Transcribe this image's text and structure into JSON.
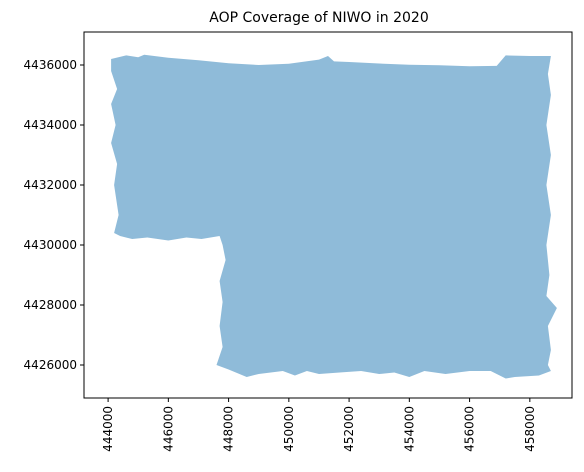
{
  "title": "AOP Coverage of NIWO in 2020",
  "xlim": [
    443200,
    459400
  ],
  "ylim": [
    4424900,
    4437100
  ],
  "x_ticks": [
    {
      "value": 444000,
      "label": "444000"
    },
    {
      "value": 446000,
      "label": "446000"
    },
    {
      "value": 448000,
      "label": "448000"
    },
    {
      "value": 450000,
      "label": "450000"
    },
    {
      "value": 452000,
      "label": "452000"
    },
    {
      "value": 454000,
      "label": "454000"
    },
    {
      "value": 456000,
      "label": "456000"
    },
    {
      "value": 458000,
      "label": "458000"
    }
  ],
  "y_ticks": [
    {
      "value": 4426000,
      "label": "4426000"
    },
    {
      "value": 4428000,
      "label": "4428000"
    },
    {
      "value": 4430000,
      "label": "4430000"
    },
    {
      "value": 4432000,
      "label": "4432000"
    },
    {
      "value": 4434000,
      "label": "4434000"
    },
    {
      "value": 4436000,
      "label": "4436000"
    }
  ],
  "coverage_color": "#1f77b4",
  "coverage_opacity": 0.5,
  "coverage_polygon": [
    [
      444100,
      4436200
    ],
    [
      444600,
      4436320
    ],
    [
      445000,
      4436260
    ],
    [
      445200,
      4436340
    ],
    [
      446000,
      4436240
    ],
    [
      447000,
      4436160
    ],
    [
      448000,
      4436060
    ],
    [
      449000,
      4436000
    ],
    [
      450000,
      4436040
    ],
    [
      451000,
      4436180
    ],
    [
      451300,
      4436300
    ],
    [
      451500,
      4436120
    ],
    [
      452000,
      4436100
    ],
    [
      453000,
      4436050
    ],
    [
      454000,
      4436010
    ],
    [
      455000,
      4435990
    ],
    [
      456000,
      4435960
    ],
    [
      456900,
      4435970
    ],
    [
      457200,
      4436320
    ],
    [
      458000,
      4436300
    ],
    [
      458700,
      4436300
    ],
    [
      458600,
      4435700
    ],
    [
      458700,
      4435000
    ],
    [
      458550,
      4434000
    ],
    [
      458700,
      4433000
    ],
    [
      458550,
      4432000
    ],
    [
      458700,
      4431000
    ],
    [
      458550,
      4430000
    ],
    [
      458650,
      4429000
    ],
    [
      458550,
      4428300
    ],
    [
      458900,
      4427900
    ],
    [
      458600,
      4427300
    ],
    [
      458700,
      4426500
    ],
    [
      458600,
      4426000
    ],
    [
      458700,
      4425800
    ],
    [
      458300,
      4425650
    ],
    [
      457500,
      4425600
    ],
    [
      457200,
      4425550
    ],
    [
      456700,
      4425800
    ],
    [
      456000,
      4425800
    ],
    [
      455200,
      4425700
    ],
    [
      454500,
      4425800
    ],
    [
      454000,
      4425600
    ],
    [
      453500,
      4425750
    ],
    [
      453000,
      4425700
    ],
    [
      452400,
      4425800
    ],
    [
      451800,
      4425760
    ],
    [
      451000,
      4425700
    ],
    [
      450600,
      4425800
    ],
    [
      450200,
      4425650
    ],
    [
      449800,
      4425800
    ],
    [
      449000,
      4425700
    ],
    [
      448600,
      4425600
    ],
    [
      448000,
      4425850
    ],
    [
      447600,
      4426000
    ],
    [
      447800,
      4426600
    ],
    [
      447700,
      4427300
    ],
    [
      447800,
      4428100
    ],
    [
      447700,
      4428800
    ],
    [
      447900,
      4429500
    ],
    [
      447800,
      4430000
    ],
    [
      447700,
      4430300
    ],
    [
      447100,
      4430200
    ],
    [
      446600,
      4430250
    ],
    [
      446000,
      4430150
    ],
    [
      445300,
      4430250
    ],
    [
      444800,
      4430200
    ],
    [
      444400,
      4430300
    ],
    [
      444200,
      4430400
    ],
    [
      444350,
      4431000
    ],
    [
      444200,
      4432000
    ],
    [
      444300,
      4432700
    ],
    [
      444100,
      4433400
    ],
    [
      444250,
      4434000
    ],
    [
      444100,
      4434700
    ],
    [
      444300,
      4435200
    ],
    [
      444100,
      4435800
    ]
  ]
}
